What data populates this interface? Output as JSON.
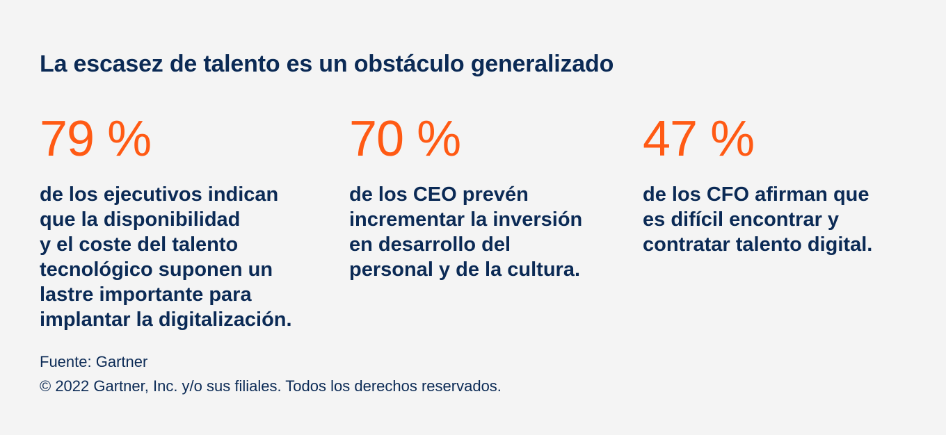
{
  "infographic": {
    "title": "La escasez de talento es un obstáculo generalizado",
    "stats": [
      {
        "value": "79 %",
        "description": "de los ejecutivos indican\nque la disponibilidad\ny el coste del talento\ntecnológico suponen un\nlastre importante para\nimplantar la digitalización."
      },
      {
        "value": "70 %",
        "description": "de los CEO prevén\nincrementar la inversión\nen desarrollo del\npersonal y de la cultura."
      },
      {
        "value": "47 %",
        "description": "de los CFO afirman que\nes difícil encontrar y\ncontratar talento digital."
      }
    ],
    "source": "Fuente: Gartner",
    "copyright": "© 2022 Gartner, Inc. y/o sus filiales. Todos los derechos reservados."
  },
  "colors": {
    "background": "#f4f4f4",
    "text": "#0b2a55",
    "accent": "#ff5a14"
  }
}
